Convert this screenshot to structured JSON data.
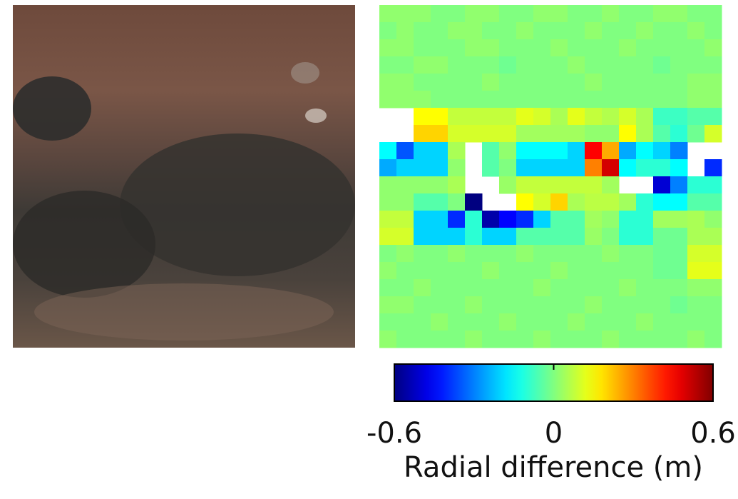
{
  "chart_data": {
    "type": "heatmap",
    "colormap": "jet",
    "clim": [
      -0.6,
      0.6
    ],
    "cticks": [
      -0.6,
      0,
      0.6
    ],
    "colorbar_label": "Radial difference (m)",
    "z": [
      [
        0.02,
        0.02,
        0.02,
        0,
        0,
        0.02,
        0.02,
        0,
        0,
        0.02,
        0.02,
        0,
        0,
        0.02,
        0,
        0,
        0.02,
        0.02,
        0,
        0
      ],
      [
        0,
        0.02,
        0,
        0,
        0.02,
        0.02,
        0,
        0,
        0.02,
        0,
        0,
        0,
        0.02,
        0,
        0,
        0.02,
        0,
        0,
        0.02,
        0
      ],
      [
        0.02,
        0.02,
        0,
        0,
        0,
        0.02,
        0.02,
        0,
        0,
        0,
        0.02,
        0,
        0,
        0,
        0.02,
        0,
        0,
        0,
        0,
        0.02
      ],
      [
        0,
        0,
        0.02,
        0.02,
        0,
        0,
        0,
        -0.02,
        0,
        0,
        0,
        0.02,
        0,
        0,
        0,
        0,
        -0.02,
        0,
        0,
        0
      ],
      [
        0.02,
        0.02,
        0,
        0,
        0,
        0,
        0.02,
        0,
        0,
        0,
        0,
        0,
        0.02,
        0,
        0,
        0,
        0,
        0,
        0.02,
        0.02
      ],
      [
        0.02,
        0.02,
        0.02,
        0,
        0,
        0,
        0,
        0,
        0,
        0,
        0,
        0,
        0,
        0,
        0,
        0,
        0,
        0,
        0.02,
        0.02
      ],
      [
        null,
        null,
        0.15,
        0.15,
        0.08,
        0.08,
        0.08,
        0.08,
        0.12,
        0.1,
        0.05,
        0.12,
        0.08,
        0.06,
        0.1,
        0.05,
        -0.08,
        -0.08,
        -0.05,
        -0.05
      ],
      [
        null,
        null,
        0.2,
        0.2,
        0.1,
        0.1,
        0.1,
        0.1,
        0.04,
        0.04,
        0.04,
        0.04,
        0.02,
        0.02,
        0.15,
        0.05,
        -0.05,
        -0.1,
        -0.02,
        0.1
      ],
      [
        -0.15,
        -0.35,
        -0.2,
        -0.2,
        0.05,
        null,
        -0.05,
        0.02,
        -0.15,
        -0.15,
        -0.15,
        -0.2,
        0.45,
        0.25,
        -0.25,
        -0.15,
        -0.2,
        -0.3,
        null,
        null
      ],
      [
        -0.25,
        -0.2,
        -0.2,
        -0.2,
        0.02,
        null,
        -0.05,
        0,
        -0.2,
        -0.2,
        -0.2,
        -0.2,
        0.3,
        0.5,
        -0.15,
        -0.1,
        -0.1,
        -0.15,
        null,
        -0.4
      ],
      [
        0.02,
        0.02,
        0.02,
        0.02,
        0.05,
        null,
        null,
        0.03,
        0.08,
        0.08,
        0.08,
        0.08,
        0.08,
        0.04,
        null,
        null,
        -0.5,
        -0.3,
        -0.1,
        -0.1
      ],
      [
        0.02,
        0.02,
        -0.05,
        -0.05,
        0,
        -0.6,
        null,
        null,
        0.15,
        0.1,
        0.2,
        0.05,
        0.07,
        0.07,
        0.04,
        -0.1,
        -0.15,
        -0.15,
        -0.05,
        -0.05
      ],
      [
        0.08,
        0.08,
        -0.2,
        -0.2,
        -0.4,
        -0.1,
        -0.55,
        -0.45,
        -0.4,
        -0.2,
        -0.05,
        -0.05,
        0.04,
        0.02,
        -0.1,
        -0.1,
        0.04,
        0.04,
        0.05,
        0.02
      ],
      [
        0.1,
        0.1,
        -0.2,
        -0.2,
        -0.2,
        -0.1,
        -0.2,
        -0.2,
        -0.05,
        -0.05,
        -0.05,
        -0.05,
        0.03,
        0,
        -0.1,
        -0.1,
        -0.02,
        -0.02,
        0.05,
        0.05
      ],
      [
        0,
        0.02,
        0,
        0,
        0.02,
        0,
        0,
        0,
        0.02,
        0,
        0,
        0,
        0,
        0.02,
        0,
        0,
        -0.02,
        -0.02,
        0.1,
        0.1
      ],
      [
        0.02,
        0,
        0,
        0,
        0,
        0,
        0.02,
        0,
        0,
        0,
        0.02,
        0,
        0,
        0,
        0,
        0,
        -0.02,
        -0.02,
        0.12,
        0.12
      ],
      [
        0,
        0,
        0.02,
        0,
        0,
        0,
        0,
        0,
        0,
        0.02,
        0,
        0,
        0,
        0,
        0.02,
        0,
        0,
        0,
        0.02,
        0.02
      ],
      [
        0.02,
        0.02,
        0,
        0,
        0,
        0.02,
        0,
        0,
        0,
        0,
        0,
        0,
        0.02,
        0,
        0,
        0,
        0,
        -0.02,
        0,
        0
      ],
      [
        0,
        0,
        0,
        0.02,
        0,
        0,
        0,
        0.02,
        0,
        0,
        0,
        0.02,
        0,
        0,
        0,
        0.02,
        0,
        0,
        0,
        0
      ],
      [
        0.02,
        0,
        0,
        0,
        0,
        0.02,
        0,
        0,
        0,
        0.02,
        0,
        0,
        0,
        0.02,
        0,
        0,
        0,
        0,
        0.02,
        0
      ]
    ]
  }
}
